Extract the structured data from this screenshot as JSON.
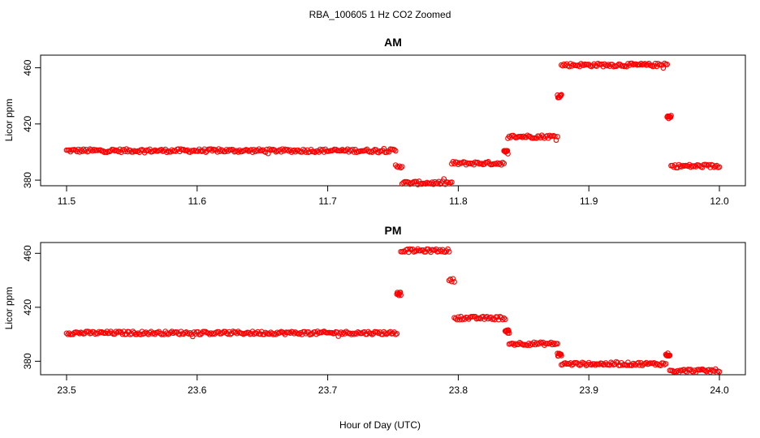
{
  "figure": {
    "title": "RBA_100605  1 Hz CO2 Zoomed",
    "xlabel": "Hour of Day (UTC)"
  },
  "chart_data": [
    {
      "type": "scatter",
      "title": "AM",
      "xlabel": "Hour of Day (UTC)",
      "ylabel": "Licor ppm",
      "xlim": [
        11.5,
        12.0
      ],
      "ylim": [
        376,
        469
      ],
      "xticks": [
        "11.5",
        "11.6",
        "11.7",
        "11.8",
        "11.9",
        "12.0"
      ],
      "yticks": [
        "380",
        "420",
        "460"
      ],
      "marker": "open-circle",
      "color": "#ff0000",
      "grid": false,
      "segments": [
        {
          "x_start": 11.5,
          "x_end": 11.752,
          "level": 401
        },
        {
          "x_start": 11.752,
          "x_end": 11.757,
          "level": 390
        },
        {
          "x_start": 11.757,
          "x_end": 11.795,
          "level": 378
        },
        {
          "x_start": 11.795,
          "x_end": 11.835,
          "level": 392
        },
        {
          "x_start": 11.835,
          "x_end": 11.838,
          "level": 400
        },
        {
          "x_start": 11.838,
          "x_end": 11.876,
          "level": 411
        },
        {
          "x_start": 11.876,
          "x_end": 11.879,
          "level": 440
        },
        {
          "x_start": 11.879,
          "x_end": 11.96,
          "level": 462
        },
        {
          "x_start": 11.96,
          "x_end": 11.963,
          "level": 425
        },
        {
          "x_start": 11.963,
          "x_end": 12.0,
          "level": 390
        }
      ]
    },
    {
      "type": "scatter",
      "title": "PM",
      "xlabel": "Hour of Day (UTC)",
      "ylabel": "Licor ppm",
      "xlim": [
        23.5,
        24.0
      ],
      "ylim": [
        370,
        468
      ],
      "xticks": [
        "23.5",
        "23.6",
        "23.7",
        "23.8",
        "23.9",
        "24.0"
      ],
      "yticks": [
        "380",
        "420",
        "460"
      ],
      "marker": "open-circle",
      "color": "#ff0000",
      "grid": false,
      "segments": [
        {
          "x_start": 23.5,
          "x_end": 23.753,
          "level": 401
        },
        {
          "x_start": 23.753,
          "x_end": 23.756,
          "level": 430
        },
        {
          "x_start": 23.756,
          "x_end": 23.793,
          "level": 462
        },
        {
          "x_start": 23.793,
          "x_end": 23.797,
          "level": 440
        },
        {
          "x_start": 23.797,
          "x_end": 23.836,
          "level": 412
        },
        {
          "x_start": 23.836,
          "x_end": 23.839,
          "level": 402
        },
        {
          "x_start": 23.839,
          "x_end": 23.876,
          "level": 393
        },
        {
          "x_start": 23.876,
          "x_end": 23.879,
          "level": 385
        },
        {
          "x_start": 23.879,
          "x_end": 23.959,
          "level": 378
        },
        {
          "x_start": 23.959,
          "x_end": 23.962,
          "level": 385
        },
        {
          "x_start": 23.962,
          "x_end": 24.0,
          "level": 373
        }
      ]
    }
  ]
}
